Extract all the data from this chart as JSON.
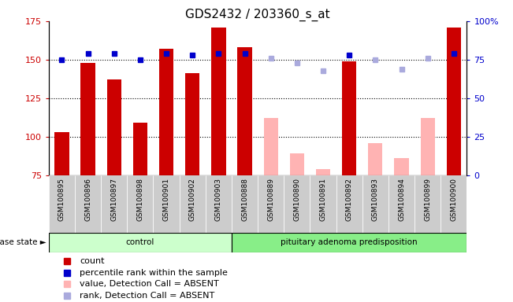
{
  "title": "GDS2432 / 203360_s_at",
  "samples": [
    "GSM100895",
    "GSM100896",
    "GSM100897",
    "GSM100898",
    "GSM100901",
    "GSM100902",
    "GSM100903",
    "GSM100888",
    "GSM100889",
    "GSM100890",
    "GSM100891",
    "GSM100892",
    "GSM100893",
    "GSM100894",
    "GSM100899",
    "GSM100900"
  ],
  "group_labels": [
    "control",
    "pituitary adenoma predisposition"
  ],
  "group_sizes": [
    7,
    9
  ],
  "ylim_left": [
    75,
    175
  ],
  "ylim_right": [
    0,
    100
  ],
  "yticks_left": [
    75,
    100,
    125,
    150,
    175
  ],
  "yticks_right": [
    0,
    25,
    50,
    75,
    100
  ],
  "ytick_labels_right": [
    "0",
    "25",
    "50",
    "75",
    "100%"
  ],
  "red_bars": [
    103,
    148,
    137,
    109,
    157,
    141,
    171,
    158,
    null,
    null,
    null,
    149,
    null,
    null,
    null,
    171
  ],
  "blue_squares": [
    75,
    79,
    79,
    75,
    79,
    78,
    79,
    79,
    null,
    null,
    null,
    78,
    null,
    null,
    null,
    79
  ],
  "pink_bars": [
    null,
    null,
    null,
    null,
    null,
    null,
    null,
    null,
    112,
    89,
    79,
    null,
    96,
    86,
    112,
    null
  ],
  "purple_squares": [
    null,
    null,
    null,
    null,
    null,
    null,
    null,
    null,
    76,
    73,
    68,
    null,
    75,
    69,
    76,
    null
  ],
  "bar_width": 0.55,
  "red_color": "#cc0000",
  "blue_color": "#0000cc",
  "pink_color": "#ffb3b3",
  "purple_color": "#aaaadd",
  "group_bg_control": "#ccffcc",
  "group_bg_disease": "#88ee88",
  "sample_bg": "#cccccc",
  "grid_color": "black",
  "title_fontsize": 11,
  "tick_fontsize": 8,
  "legend_fontsize": 8
}
